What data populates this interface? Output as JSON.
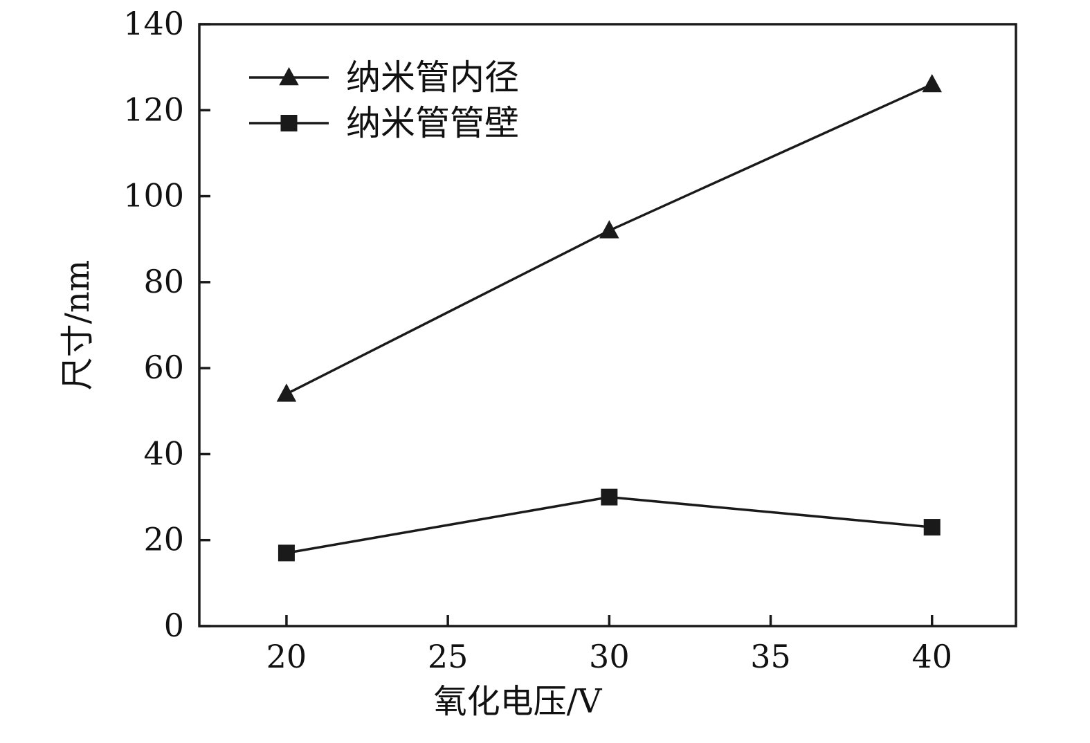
{
  "chart_data": {
    "type": "line",
    "title": "",
    "xlabel": "氧化电压/V",
    "ylabel": "尺寸/nm",
    "x": [
      20,
      30,
      40
    ],
    "series": [
      {
        "name": "纳米管内径",
        "marker": "triangle",
        "values": [
          54,
          92,
          126
        ]
      },
      {
        "name": "纳米管管壁",
        "marker": "square",
        "values": [
          17,
          30,
          23
        ]
      }
    ],
    "xlim": [
      17.3,
      42.6
    ],
    "xticks": [
      20,
      25,
      30,
      35,
      40
    ],
    "ylim": [
      0,
      140
    ],
    "yticks": [
      0,
      20,
      40,
      60,
      80,
      100,
      120,
      140
    ],
    "grid": false,
    "legend_position": "top-left",
    "line_color": "#1a1a1a",
    "axis_color": "#1a1a1a"
  }
}
